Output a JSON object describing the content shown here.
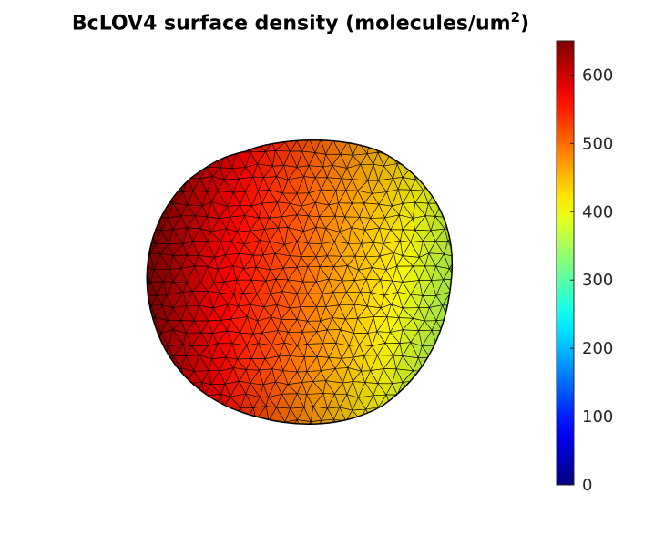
{
  "chart_data": {
    "type": "heatmap",
    "subtype": "3d-triangulated-surface",
    "title": "BcLOV4 surface density (molecules/um",
    "title_superscript": "2",
    "title_suffix": ")",
    "colormap": "jet",
    "colorbar": {
      "location": "right",
      "clim": [
        0,
        650
      ],
      "ticks": [
        0,
        100,
        200,
        300,
        400,
        500,
        600
      ],
      "tick_labels": [
        "0",
        "100",
        "200",
        "300",
        "400",
        "500",
        "600"
      ]
    },
    "surface": {
      "shape": "ellipsoid-cell",
      "edge_color": "#000000",
      "value_range": [
        330,
        650
      ],
      "gradient": "high (~650) upper-left, low (~330) right"
    }
  }
}
